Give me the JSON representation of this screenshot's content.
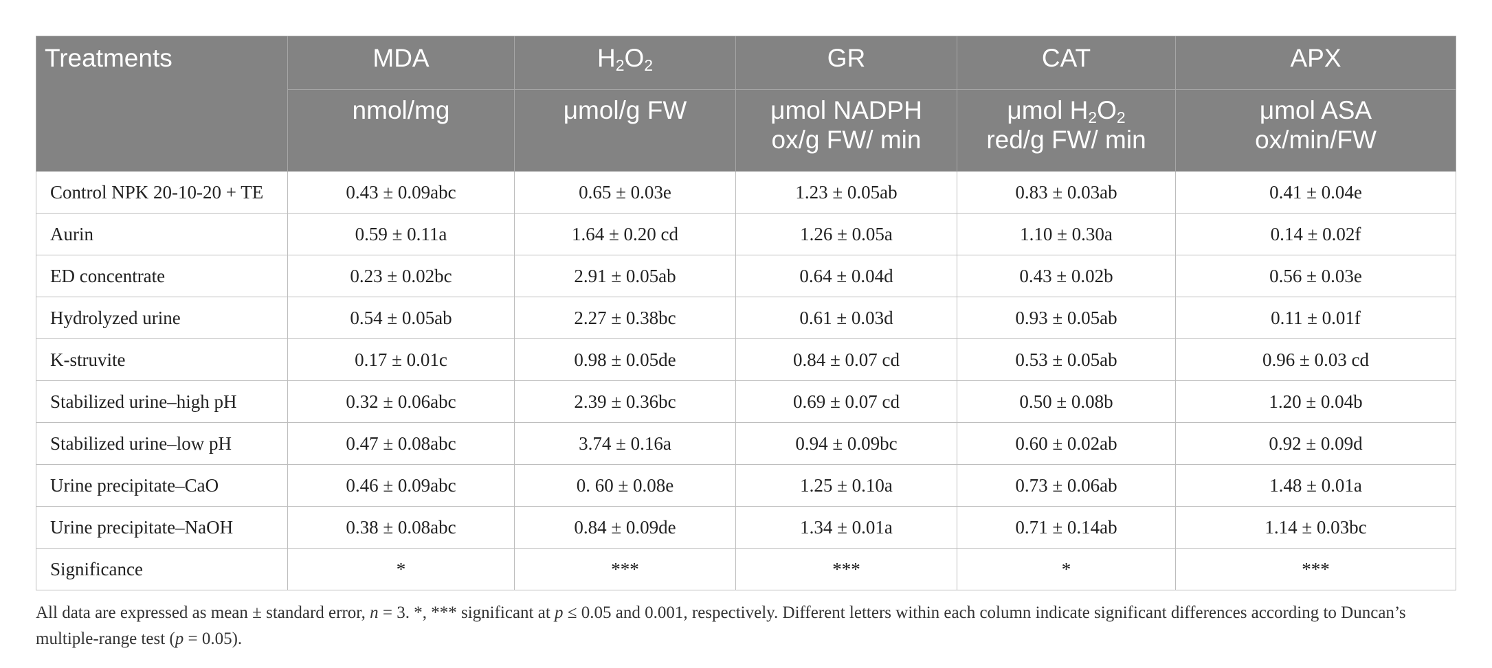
{
  "table": {
    "columns": [
      {
        "name": "Treatments",
        "unit": ""
      },
      {
        "name": "MDA",
        "unit": "nmol/mg"
      },
      {
        "name_parts": [
          "H",
          "2",
          "O",
          "2"
        ],
        "unit": "μmol/g FW"
      },
      {
        "name": "GR",
        "unit_lines": [
          "μmol NADPH",
          "ox/g FW/ min"
        ]
      },
      {
        "name": "CAT",
        "unit_line1_parts": [
          "μmol H",
          "2",
          "O",
          "2"
        ],
        "unit_line2": "red/g FW/ min"
      },
      {
        "name": "APX",
        "unit_lines": [
          "μmol ASA",
          "ox/min/FW"
        ]
      }
    ],
    "rows": [
      [
        "Control NPK 20-10-20 + TE",
        "0.43 ± 0.09abc",
        "0.65 ± 0.03e",
        "1.23 ± 0.05ab",
        "0.83 ± 0.03ab",
        "0.41 ± 0.04e"
      ],
      [
        "Aurin",
        "0.59 ± 0.11a",
        "1.64 ± 0.20 cd",
        "1.26 ± 0.05a",
        "1.10 ± 0.30a",
        "0.14 ± 0.02f"
      ],
      [
        "ED concentrate",
        "0.23 ± 0.02bc",
        "2.91 ± 0.05ab",
        "0.64 ± 0.04d",
        "0.43 ± 0.02b",
        "0.56 ± 0.03e"
      ],
      [
        "Hydrolyzed urine",
        "0.54 ± 0.05ab",
        "2.27 ± 0.38bc",
        "0.61 ± 0.03d",
        "0.93 ± 0.05ab",
        "0.11 ± 0.01f"
      ],
      [
        "K-struvite",
        "0.17 ± 0.01c",
        "0.98 ± 0.05de",
        "0.84 ± 0.07 cd",
        "0.53 ± 0.05ab",
        "0.96 ± 0.03 cd"
      ],
      [
        "Stabilized urine–high pH",
        "0.32 ± 0.06abc",
        "2.39 ± 0.36bc",
        "0.69 ± 0.07 cd",
        "0.50 ± 0.08b",
        "1.20 ± 0.04b"
      ],
      [
        "Stabilized urine–low pH",
        "0.47 ± 0.08abc",
        "3.74 ± 0.16a",
        "0.94 ± 0.09bc",
        "0.60 ± 0.02ab",
        "0.92 ± 0.09d"
      ],
      [
        "Urine precipitate–CaO",
        "0.46 ± 0.09abc",
        "0. 60 ± 0.08e",
        "1.25 ± 0.10a",
        "0.73 ± 0.06ab",
        "1.48 ± 0.01a"
      ],
      [
        "Urine precipitate–NaOH",
        "0.38 ± 0.08abc",
        "0.84 ± 0.09de",
        "1.34 ± 0.01a",
        "0.71 ± 0.14ab",
        "1.14 ± 0.03bc"
      ],
      [
        "Significance",
        "*",
        "***",
        "***",
        "*",
        "***"
      ]
    ]
  },
  "footnote": {
    "part1": "All data are expressed as mean ± standard error, ",
    "n_var": "n",
    "part2": " = 3. *, *** significant at ",
    "p_var1": "p",
    "part3": " ≤ 0.05 and 0.001, respectively. Different letters within each column indicate significant differences according to Duncan’s multiple-range test (",
    "p_var2": "p",
    "part4": " = 0.05)."
  },
  "colors": {
    "header_bg": "#838383",
    "header_text": "#ffffff",
    "border": "#bdbdbd"
  }
}
